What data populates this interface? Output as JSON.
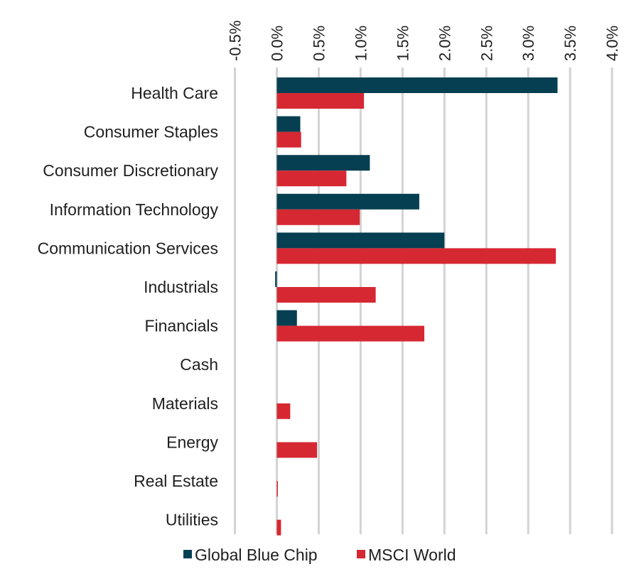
{
  "chart_data": {
    "type": "bar",
    "orientation": "horizontal",
    "categories": [
      "Health Care",
      "Consumer Staples",
      "Consumer Discretionary",
      "Information Technology",
      "Communication Services",
      "Industrials",
      "Financials",
      "Cash",
      "Materials",
      "Energy",
      "Real Estate",
      "Utilities"
    ],
    "series": [
      {
        "name": "Global Blue Chip",
        "color": "#063f52",
        "values": [
          3.35,
          0.28,
          1.11,
          1.7,
          2.0,
          -0.02,
          0.24,
          0.0,
          0.0,
          0.0,
          0.0,
          0.0
        ]
      },
      {
        "name": "MSCI World",
        "color": "#d62832",
        "values": [
          1.04,
          0.29,
          0.83,
          0.99,
          3.33,
          1.18,
          1.76,
          0.0,
          0.16,
          0.48,
          0.01,
          0.05
        ]
      }
    ],
    "xlim": [
      -0.5,
      4.0
    ],
    "ticks": [
      -0.5,
      0.0,
      0.5,
      1.0,
      1.5,
      2.0,
      2.5,
      3.0,
      3.5,
      4.0
    ],
    "tick_labels": [
      "-0.5%",
      "0.0%",
      "0.5%",
      "1.0%",
      "1.5%",
      "2.0%",
      "2.5%",
      "3.0%",
      "3.5%",
      "4.0%"
    ],
    "axis_position": "top",
    "grid": true,
    "grid_color": "#d3d3d3",
    "legend_position": "bottom"
  }
}
